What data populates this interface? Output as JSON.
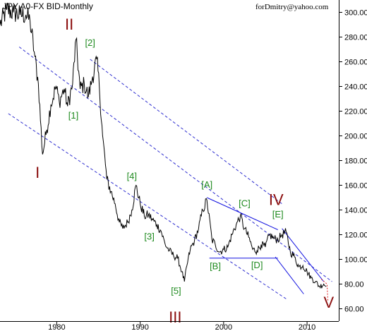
{
  "chart_data": {
    "type": "line",
    "title": "JPY A0-FX BID-Monthly",
    "annotation": "forDmitry@yahoo.com",
    "xlabel": "",
    "ylabel": "",
    "xlim": [
      1973.2,
      2013.8
    ],
    "ylim": [
      50,
      310
    ],
    "x_ticks": [
      1980,
      1990,
      2000,
      2010
    ],
    "x_tick_labels": [
      "1980",
      "1990",
      "2000",
      "2010"
    ],
    "y_ticks": [
      60,
      80,
      100,
      120,
      140,
      160,
      180,
      200,
      220,
      240,
      260,
      280,
      300
    ],
    "y_tick_labels": [
      "60.00",
      "80.00",
      "100.00",
      "120.00",
      "140.00",
      "160.00",
      "180.00",
      "200.00",
      "220.00",
      "240.00",
      "260.00",
      "280.00",
      "300.00"
    ],
    "grid": false,
    "series": [
      {
        "color": "#000000",
        "x": [
          1973.2,
          1974.0,
          1974.8,
          1975.6,
          1976.3,
          1976.8,
          1977.3,
          1977.8,
          1978.3,
          1978.8,
          1979.3,
          1979.9,
          1980.3,
          1980.9,
          1981.3,
          1981.9,
          1982.3,
          1982.8,
          1983.3,
          1983.8,
          1984.3,
          1984.8,
          1985.1,
          1985.5,
          1986.0,
          1986.5,
          1987.0,
          1987.5,
          1987.9,
          1988.5,
          1989.0,
          1989.5,
          1990.0,
          1990.5,
          1991.0,
          1991.5,
          1992.0,
          1992.5,
          1993.0,
          1993.5,
          1994.0,
          1994.5,
          1995.0,
          1995.3,
          1995.6,
          1996.0,
          1996.5,
          1997.0,
          1997.5,
          1998.0,
          1998.6,
          1999.0,
          1999.5,
          2000.0,
          2000.5,
          2001.0,
          2001.5,
          2002.0,
          2002.5,
          2003.0,
          2003.5,
          2004.0,
          2004.5,
          2005.0,
          2005.5,
          2006.0,
          2006.5,
          2007.0,
          2007.5,
          2008.0,
          2008.5,
          2009.0,
          2009.5,
          2010.0,
          2010.5,
          2011.0,
          2011.5,
          2012.0,
          2012.3
        ],
        "y": [
          290,
          302,
          300,
          298,
          298,
          293,
          268,
          242,
          185,
          205,
          225,
          240,
          228,
          238,
          224,
          242,
          278,
          238,
          242,
          232,
          248,
          262,
          240,
          200,
          165,
          155,
          145,
          130,
          125,
          130,
          140,
          160,
          145,
          135,
          136,
          132,
          128,
          123,
          112,
          107,
          103,
          101,
          90,
          82,
          95,
          108,
          115,
          125,
          140,
          148,
          116,
          112,
          106,
          108,
          110,
          120,
          128,
          135,
          125,
          118,
          108,
          107,
          112,
          110,
          120,
          117,
          116,
          120,
          122,
          106,
          102,
          94,
          95,
          90,
          85,
          82,
          78,
          80,
          78
        ]
      }
    ],
    "trend_lines": [
      {
        "style": "dashed",
        "color": "#3030d0",
        "x": [
          1975.5,
          2013.0
        ],
        "y": [
          272,
          82
        ]
      },
      {
        "style": "dashed",
        "color": "#3030d0",
        "x": [
          1974.2,
          2007.5
        ],
        "y": [
          218,
          68
        ]
      },
      {
        "style": "dashed",
        "color": "#3030d0",
        "x": [
          1984.0,
          2007.0
        ],
        "y": [
          262,
          145
        ]
      },
      {
        "style": "solid",
        "color": "#1010e0",
        "x": [
          1998.0,
          2006.5
        ],
        "y": [
          150,
          124
        ]
      },
      {
        "style": "solid",
        "color": "#1010e0",
        "x": [
          1998.3,
          2006.5
        ],
        "y": [
          101,
          101
        ]
      },
      {
        "style": "solid",
        "color": "#1010e0",
        "x": [
          2007.0,
          2012.0
        ],
        "y": [
          125,
          82
        ]
      },
      {
        "style": "solid",
        "color": "#1010e0",
        "x": [
          2006.2,
          2009.6
        ],
        "y": [
          102,
          72
        ]
      },
      {
        "style": "dotted",
        "color": "#e02020",
        "x": [
          2011.7,
          2012.4,
          2012.5
        ],
        "y": [
          84,
          80,
          66
        ]
      }
    ],
    "annotations": [
      {
        "text": "I",
        "x": 1977.7,
        "y": 166,
        "style": "big"
      },
      {
        "text": "II",
        "x": 1981.5,
        "y": 286,
        "style": "big"
      },
      {
        "text": "III",
        "x": 1994.2,
        "y": 49,
        "style": "big"
      },
      {
        "text": "IV",
        "x": 2006.3,
        "y": 144,
        "style": "big"
      },
      {
        "text": "V",
        "x": 2012.6,
        "y": 61,
        "style": "big"
      },
      {
        "text": "[1]",
        "x": 1982.0,
        "y": 214,
        "style": "small"
      },
      {
        "text": "[2]",
        "x": 1984.0,
        "y": 273,
        "style": "small"
      },
      {
        "text": "[3]",
        "x": 1991.1,
        "y": 116,
        "style": "small"
      },
      {
        "text": "[4]",
        "x": 1989.0,
        "y": 165,
        "style": "small"
      },
      {
        "text": "[5]",
        "x": 1994.3,
        "y": 72,
        "style": "small"
      },
      {
        "text": "[A]",
        "x": 1998.0,
        "y": 158,
        "style": "small"
      },
      {
        "text": "[B]",
        "x": 1999.0,
        "y": 92,
        "style": "small"
      },
      {
        "text": "[C]",
        "x": 2002.5,
        "y": 143,
        "style": "small"
      },
      {
        "text": "[D]",
        "x": 2004.0,
        "y": 93,
        "style": "small"
      },
      {
        "text": "[E]",
        "x": 2006.5,
        "y": 134,
        "style": "small"
      }
    ]
  }
}
